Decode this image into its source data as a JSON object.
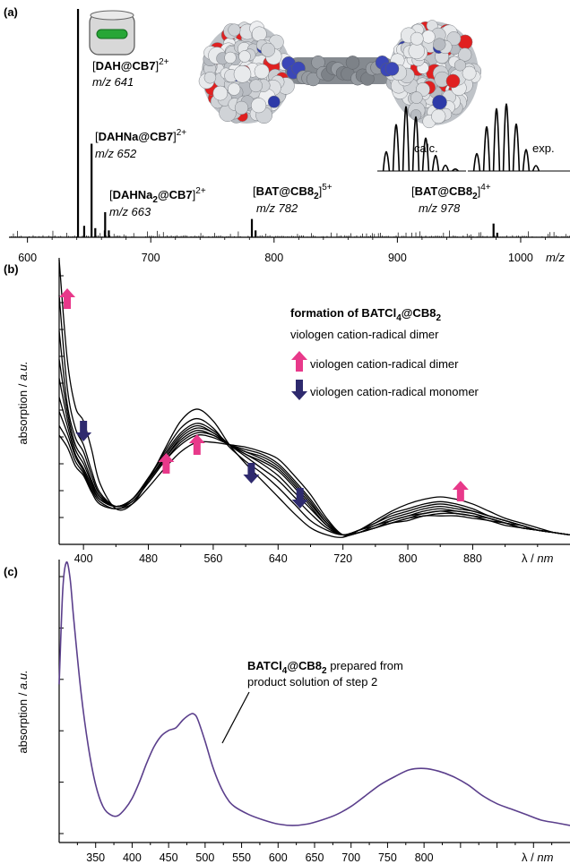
{
  "colors": {
    "pink_arrow": "#e8398a",
    "navy_arrow": "#2e2a6e",
    "purple_trace": "#5b3f8c",
    "black": "#000000"
  },
  "panels": {
    "a": {
      "letter": "(a)",
      "icon": "cucurbituril-host-guest-icon",
      "molecule_image": "space-filling-dumbbell-molecule",
      "peaks": [
        {
          "pre": "[",
          "bold": "DAH@CB7",
          "sub": "",
          "post": "]",
          "charge": "2+",
          "mz_text": "m/z 641"
        },
        {
          "pre": "[",
          "bold": "DAHNa@CB7",
          "sub": "",
          "post": "]",
          "charge": "2+",
          "mz_text": "m/z 652"
        },
        {
          "pre": "[",
          "bold": "DAHNa",
          "sub": "2",
          "bold2": "@CB7",
          "post": "]",
          "charge": "2+",
          "mz_text": "m/z 663"
        },
        {
          "pre": "[",
          "bold": "BAT@CB8",
          "sub": "2",
          "post": "]",
          "charge": "5+",
          "mz_text": "m/z 782"
        },
        {
          "pre": "[",
          "bold": "BAT@CB8",
          "sub": "2",
          "post": "]",
          "charge": "4+",
          "mz_text": "m/z 978"
        }
      ],
      "calc_label": "calc.",
      "exp_label": "exp.",
      "xlabel": "m/z"
    },
    "b": {
      "letter": "(b)",
      "title_bold": "formation of BATCl",
      "title_sub1": "4",
      "title_bold2": "@CB8",
      "title_sub2": "2",
      "subtitle": "viologen cation-radical dimer",
      "legend_up": "viologen cation-radical dimer",
      "legend_down": "viologen cation-radical monomer",
      "ylabel_pre": "absorption / ",
      "ylabel_unit": "a.u.",
      "xlabel_pre": "λ / ",
      "xlabel_unit": "nm"
    },
    "c": {
      "letter": "(c)",
      "annot_bold": "BATCl",
      "annot_sub1": "4",
      "annot_bold2": "@CB8",
      "annot_sub2": "2",
      "annot_rest": " prepared from",
      "annot_line2": "product solution of step 2",
      "ylabel_pre": "absorption / ",
      "ylabel_unit": "a.u.",
      "xlabel_pre": "λ / ",
      "xlabel_unit": "nm"
    }
  },
  "chart_data": [
    {
      "type": "line",
      "panel": "a",
      "description": "ESI mass spectrum",
      "xlabel": "m/z",
      "xlim": [
        585,
        1040
      ],
      "xticks": [
        600,
        700,
        800,
        900,
        1000
      ],
      "ylim": [
        0,
        100
      ],
      "peaks": [
        {
          "x": 641,
          "y": 100
        },
        {
          "x": 646,
          "y": 5
        },
        {
          "x": 652,
          "y": 41
        },
        {
          "x": 655,
          "y": 4
        },
        {
          "x": 663,
          "y": 11
        },
        {
          "x": 666,
          "y": 3
        },
        {
          "x": 782,
          "y": 8
        },
        {
          "x": 785,
          "y": 3
        },
        {
          "x": 978,
          "y": 6
        },
        {
          "x": 981,
          "y": 2
        }
      ],
      "isotope_calc": [
        0.3,
        0.72,
        1.0,
        0.84,
        0.51,
        0.24,
        0.09,
        0.03
      ],
      "isotope_exp": [
        0.26,
        0.66,
        0.93,
        1.0,
        0.7,
        0.32,
        0.08
      ]
    },
    {
      "type": "line",
      "panel": "b",
      "xlabel": "λ / nm",
      "ylabel": "absorption / a.u.",
      "xlim": [
        370,
        1000
      ],
      "xticks": [
        400,
        480,
        560,
        640,
        720,
        800,
        880
      ],
      "ylim": [
        0,
        1.2
      ],
      "x": [
        370,
        380,
        390,
        400,
        410,
        420,
        440,
        460,
        480,
        500,
        520,
        540,
        560,
        580,
        600,
        620,
        640,
        660,
        680,
        700,
        720,
        740,
        760,
        780,
        800,
        820,
        840,
        860,
        880,
        900,
        920,
        940,
        960,
        980,
        1000
      ],
      "series": [
        {
          "values": [
            1.2,
            0.78,
            0.58,
            0.52,
            0.4,
            0.26,
            0.15,
            0.17,
            0.27,
            0.4,
            0.52,
            0.57,
            0.52,
            0.42,
            0.34,
            0.27,
            0.2,
            0.13,
            0.07,
            0.04,
            0.03,
            0.06,
            0.1,
            0.14,
            0.17,
            0.19,
            0.2,
            0.19,
            0.17,
            0.14,
            0.11,
            0.09,
            0.07,
            0.05,
            0.04
          ]
        },
        {
          "values": [
            1.05,
            0.66,
            0.49,
            0.42,
            0.31,
            0.22,
            0.16,
            0.19,
            0.28,
            0.39,
            0.49,
            0.53,
            0.49,
            0.41,
            0.35,
            0.3,
            0.24,
            0.17,
            0.1,
            0.06,
            0.04,
            0.06,
            0.09,
            0.13,
            0.15,
            0.17,
            0.18,
            0.17,
            0.15,
            0.12,
            0.1,
            0.08,
            0.06,
            0.05,
            0.04
          ]
        },
        {
          "values": [
            0.9,
            0.59,
            0.45,
            0.39,
            0.29,
            0.21,
            0.16,
            0.19,
            0.28,
            0.38,
            0.47,
            0.51,
            0.48,
            0.42,
            0.37,
            0.32,
            0.27,
            0.2,
            0.13,
            0.07,
            0.04,
            0.06,
            0.09,
            0.12,
            0.14,
            0.16,
            0.17,
            0.16,
            0.14,
            0.12,
            0.1,
            0.08,
            0.06,
            0.05,
            0.04
          ]
        },
        {
          "values": [
            0.78,
            0.56,
            0.42,
            0.36,
            0.27,
            0.2,
            0.16,
            0.19,
            0.27,
            0.37,
            0.46,
            0.5,
            0.47,
            0.42,
            0.38,
            0.34,
            0.29,
            0.22,
            0.15,
            0.08,
            0.04,
            0.06,
            0.08,
            0.11,
            0.13,
            0.15,
            0.16,
            0.15,
            0.14,
            0.12,
            0.1,
            0.08,
            0.06,
            0.05,
            0.04
          ]
        },
        {
          "values": [
            0.7,
            0.53,
            0.4,
            0.34,
            0.26,
            0.2,
            0.16,
            0.19,
            0.27,
            0.36,
            0.45,
            0.49,
            0.47,
            0.42,
            0.38,
            0.35,
            0.31,
            0.24,
            0.16,
            0.08,
            0.04,
            0.05,
            0.08,
            0.1,
            0.12,
            0.14,
            0.15,
            0.14,
            0.13,
            0.11,
            0.09,
            0.08,
            0.06,
            0.05,
            0.04
          ]
        },
        {
          "values": [
            0.62,
            0.5,
            0.38,
            0.32,
            0.25,
            0.19,
            0.16,
            0.19,
            0.27,
            0.36,
            0.44,
            0.48,
            0.46,
            0.42,
            0.39,
            0.36,
            0.32,
            0.25,
            0.17,
            0.09,
            0.04,
            0.05,
            0.07,
            0.1,
            0.12,
            0.13,
            0.14,
            0.14,
            0.13,
            0.11,
            0.09,
            0.07,
            0.06,
            0.05,
            0.04
          ]
        },
        {
          "values": [
            0.56,
            0.47,
            0.37,
            0.31,
            0.24,
            0.19,
            0.16,
            0.18,
            0.26,
            0.35,
            0.43,
            0.47,
            0.46,
            0.42,
            0.39,
            0.37,
            0.33,
            0.26,
            0.18,
            0.09,
            0.04,
            0.05,
            0.07,
            0.09,
            0.11,
            0.13,
            0.14,
            0.13,
            0.12,
            0.11,
            0.09,
            0.07,
            0.06,
            0.05,
            0.04
          ]
        },
        {
          "values": [
            0.5,
            0.44,
            0.35,
            0.3,
            0.23,
            0.18,
            0.15,
            0.18,
            0.26,
            0.35,
            0.42,
            0.46,
            0.45,
            0.42,
            0.4,
            0.38,
            0.34,
            0.27,
            0.19,
            0.1,
            0.04,
            0.05,
            0.07,
            0.09,
            0.11,
            0.12,
            0.13,
            0.13,
            0.12,
            0.1,
            0.09,
            0.07,
            0.06,
            0.05,
            0.04
          ]
        },
        {
          "values": [
            0.46,
            0.41,
            0.33,
            0.29,
            0.22,
            0.17,
            0.15,
            0.17,
            0.24,
            0.32,
            0.39,
            0.43,
            0.43,
            0.42,
            0.41,
            0.39,
            0.36,
            0.29,
            0.21,
            0.11,
            0.04,
            0.05,
            0.07,
            0.09,
            0.1,
            0.12,
            0.12,
            0.12,
            0.11,
            0.1,
            0.08,
            0.07,
            0.06,
            0.05,
            0.04
          ]
        }
      ],
      "arrows": [
        {
          "x": 380,
          "dir": "up"
        },
        {
          "x": 400,
          "dir": "down"
        },
        {
          "x": 502,
          "dir": "up"
        },
        {
          "x": 540,
          "dir": "up"
        },
        {
          "x": 607,
          "dir": "down"
        },
        {
          "x": 667,
          "dir": "down"
        },
        {
          "x": 865,
          "dir": "up"
        }
      ]
    },
    {
      "type": "line",
      "panel": "c",
      "xlabel": "λ / nm",
      "ylabel": "absorption / a.u.",
      "xlim": [
        300,
        1000
      ],
      "xticks": [
        350,
        400,
        450,
        500,
        550,
        600,
        650,
        700,
        750,
        800
      ],
      "ylim": [
        0,
        1.0
      ],
      "x": [
        300,
        305,
        310,
        315,
        320,
        330,
        340,
        350,
        360,
        370,
        380,
        390,
        400,
        410,
        420,
        430,
        440,
        450,
        460,
        470,
        480,
        485,
        490,
        500,
        510,
        520,
        530,
        540,
        560,
        580,
        600,
        620,
        640,
        660,
        680,
        700,
        720,
        740,
        760,
        780,
        800,
        820,
        840,
        860,
        880,
        900,
        920,
        940,
        960,
        980,
        1000
      ],
      "values": [
        0.55,
        0.9,
        1.0,
        0.94,
        0.79,
        0.52,
        0.32,
        0.18,
        0.1,
        0.07,
        0.065,
        0.09,
        0.13,
        0.19,
        0.26,
        0.32,
        0.36,
        0.38,
        0.39,
        0.42,
        0.44,
        0.44,
        0.42,
        0.34,
        0.25,
        0.18,
        0.13,
        0.1,
        0.07,
        0.05,
        0.035,
        0.03,
        0.035,
        0.05,
        0.07,
        0.1,
        0.14,
        0.18,
        0.21,
        0.235,
        0.24,
        0.23,
        0.21,
        0.18,
        0.14,
        0.11,
        0.09,
        0.07,
        0.05,
        0.04,
        0.03
      ]
    }
  ]
}
